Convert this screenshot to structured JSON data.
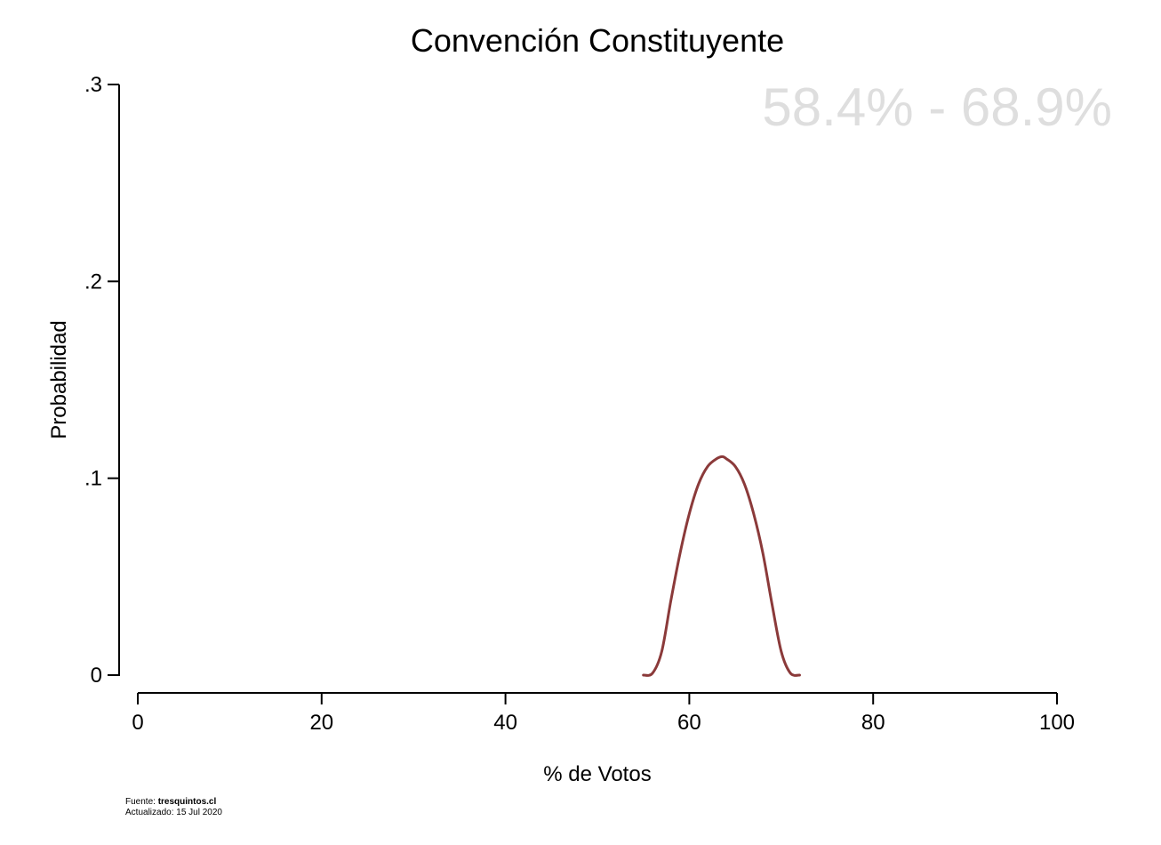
{
  "chart_data": {
    "type": "line",
    "title": "Convención Constituyente",
    "xlabel": "% de Votos",
    "ylabel": "Probabilidad",
    "xlim": [
      0,
      100
    ],
    "ylim": [
      0,
      0.3
    ],
    "x_ticks": [
      0,
      20,
      40,
      60,
      80,
      100
    ],
    "x_tick_labels": [
      "0",
      "20",
      "40",
      "60",
      "80",
      "100"
    ],
    "y_ticks": [
      0,
      0.1,
      0.2,
      0.3
    ],
    "y_tick_labels": [
      "0",
      ".1",
      ".2",
      ".3"
    ],
    "grid": false,
    "annotation": "58.4% - 68.9%",
    "series": [
      {
        "color": "#8b3a3a",
        "x": [
          55.0,
          56.0,
          57.0,
          58.0,
          59.0,
          60.0,
          61.0,
          62.0,
          63.0,
          63.6,
          64.0,
          65.0,
          66.0,
          67.0,
          68.0,
          69.0,
          70.0,
          71.0,
          72.0
        ],
        "y": [
          0.0,
          0.001,
          0.012,
          0.038,
          0.062,
          0.082,
          0.097,
          0.106,
          0.11,
          0.111,
          0.11,
          0.106,
          0.097,
          0.082,
          0.062,
          0.036,
          0.012,
          0.001,
          0.0
        ]
      }
    ]
  },
  "footer": {
    "source_label": "Fuente: ",
    "source_value": "tresquintos.cl",
    "updated": "Actualizado: 15 Jul 2020"
  }
}
